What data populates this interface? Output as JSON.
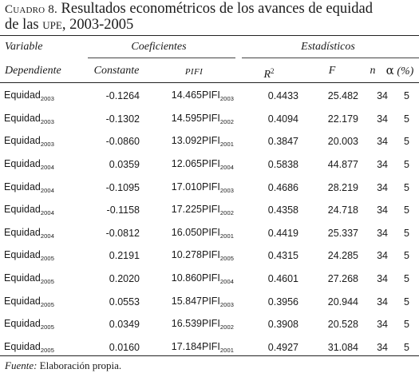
{
  "title": {
    "label": "Cuadro 8.",
    "text_line1": " Resultados econométricos de los avances de equidad",
    "text_line2_pre": "de las ",
    "text_line2_abbr": "upe",
    "text_line2_post": ", 2003-2005"
  },
  "headers": {
    "variable": "Variable",
    "dependiente": "Dependiente",
    "coeficientes": "Coeficientes",
    "constante": "Constante",
    "pifi": "PIFI",
    "estadisticos": "Estadísticos",
    "r2": "R",
    "r2_sup": "2",
    "f": "F",
    "n": "n",
    "alpha": "α",
    "alpha_unit": " (%)"
  },
  "rows": [
    {
      "dep": "Equidad",
      "dep_year": "2003",
      "constante": "-0.1264",
      "pifi_coef": "14.465PIFI",
      "pifi_year": "2003",
      "r2": "0.4433",
      "f": "25.482",
      "n": "34",
      "alpha": "5"
    },
    {
      "dep": "Equidad",
      "dep_year": "2003",
      "constante": "-0.1302",
      "pifi_coef": "14.595PIFI",
      "pifi_year": "2002",
      "r2": "0.4094",
      "f": "22.179",
      "n": "34",
      "alpha": "5"
    },
    {
      "dep": "Equidad",
      "dep_year": "2003",
      "constante": "-0.0860",
      "pifi_coef": "13.092PIFI",
      "pifi_year": "2001",
      "r2": "0.3847",
      "f": "20.003",
      "n": "34",
      "alpha": "5"
    },
    {
      "dep": "Equidad",
      "dep_year": "2004",
      "constante": "0.0359",
      "pifi_coef": "12.065PIFI",
      "pifi_year": "2004",
      "r2": "0.5838",
      "f": "44.877",
      "n": "34",
      "alpha": "5"
    },
    {
      "dep": "Equidad",
      "dep_year": "2004",
      "constante": "-0.1095",
      "pifi_coef": "17.010PIFI",
      "pifi_year": "2003",
      "r2": "0.4686",
      "f": "28.219",
      "n": "34",
      "alpha": "5"
    },
    {
      "dep": "Equidad",
      "dep_year": "2004",
      "constante": "-0.1158",
      "pifi_coef": "17.225PIFI",
      "pifi_year": "2002",
      "r2": "0.4358",
      "f": "24.718",
      "n": "34",
      "alpha": "5"
    },
    {
      "dep": "Equidad",
      "dep_year": "2004",
      "constante": "-0.0812",
      "pifi_coef": "16.050PIFI",
      "pifi_year": "2001",
      "r2": "0.4419",
      "f": "25.337",
      "n": "34",
      "alpha": "5"
    },
    {
      "dep": "Equidad",
      "dep_year": "2005",
      "constante": "0.2191",
      "pifi_coef": "10.278PIFI",
      "pifi_year": "2005",
      "r2": "0.4315",
      "f": "24.285",
      "n": "34",
      "alpha": "5"
    },
    {
      "dep": "Equidad",
      "dep_year": "2005",
      "constante": "0.2020",
      "pifi_coef": "10.860PIFI",
      "pifi_year": "2004",
      "r2": "0.4601",
      "f": "27.268",
      "n": "34",
      "alpha": "5"
    },
    {
      "dep": "Equidad",
      "dep_year": "2005",
      "constante": "0.0553",
      "pifi_coef": "15.847PIFI",
      "pifi_year": "2003",
      "r2": "0.3956",
      "f": "20.944",
      "n": "34",
      "alpha": "5"
    },
    {
      "dep": "Equidad",
      "dep_year": "2005",
      "constante": "0.0349",
      "pifi_coef": "16.539PIFI",
      "pifi_year": "2002",
      "r2": "0.3908",
      "f": "20.528",
      "n": "34",
      "alpha": "5"
    },
    {
      "dep": "Equidad",
      "dep_year": "2005",
      "constante": "0.0160",
      "pifi_coef": "17.184PIFI",
      "pifi_year": "2001",
      "r2": "0.4927",
      "f": "31.084",
      "n": "34",
      "alpha": "5"
    }
  ],
  "source": {
    "label": "Fuente:",
    "text": " Elaboración propia."
  }
}
